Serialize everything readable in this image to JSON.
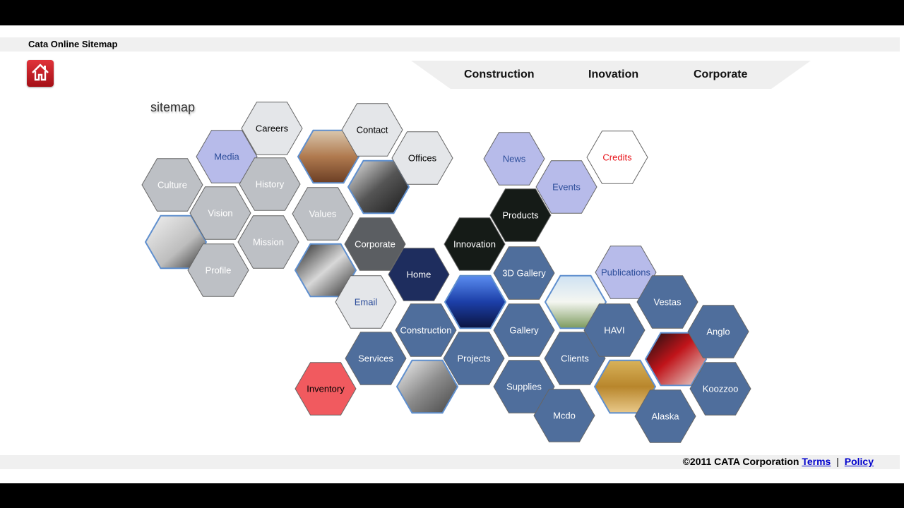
{
  "header": {
    "title": "Cata Online Sitemap",
    "home_icon": "home-icon"
  },
  "nav": {
    "items": [
      "Construction",
      "Inovation",
      "Corporate"
    ]
  },
  "sitemap": {
    "label": "sitemap",
    "colors": {
      "lavender": "#b7bbea",
      "gray": "#bdc0c5",
      "light": "#e4e6e9",
      "dark": "#5b5e62",
      "navy": "#1e2d5e",
      "black": "#151b17",
      "blue": "#4f6e9c",
      "red": "#f15a5f"
    },
    "tiles": [
      {
        "label": "Careers",
        "style": "light",
        "text": "#000"
      },
      {
        "label": "Contact",
        "style": "light",
        "text": "#000"
      },
      {
        "label": "Offices",
        "style": "light",
        "text": "#000"
      },
      {
        "label": "Media",
        "style": "lavender",
        "text": "#2c4d9a"
      },
      {
        "label": "Culture",
        "style": "gray",
        "text": "#fff"
      },
      {
        "label": "History",
        "style": "gray",
        "text": "#fff"
      },
      {
        "label": "Vision",
        "style": "gray",
        "text": "#fff"
      },
      {
        "label": "Values",
        "style": "gray",
        "text": "#fff"
      },
      {
        "label": "Mission",
        "style": "gray",
        "text": "#fff"
      },
      {
        "label": "Profile",
        "style": "gray",
        "text": "#fff"
      },
      {
        "label": "Corporate",
        "style": "dark",
        "text": "#fff"
      },
      {
        "label": "Home",
        "style": "navy",
        "text": "#fff"
      },
      {
        "label": "Email",
        "style": "light",
        "text": "#2c4d9a"
      },
      {
        "label": "Innovation",
        "style": "black",
        "text": "#fff"
      },
      {
        "label": "Products",
        "style": "black",
        "text": "#fff"
      },
      {
        "label": "News",
        "style": "lavender",
        "text": "#2c4d9a"
      },
      {
        "label": "Events",
        "style": "lavender",
        "text": "#2c4d9a"
      },
      {
        "label": "Credits",
        "style": "white",
        "text": "#e8141b"
      },
      {
        "label": "3D Gallery",
        "style": "blue",
        "text": "#fff"
      },
      {
        "label": "Construction",
        "style": "blue",
        "text": "#fff"
      },
      {
        "label": "Gallery",
        "style": "blue",
        "text": "#fff"
      },
      {
        "label": "Services",
        "style": "blue",
        "text": "#fff"
      },
      {
        "label": "Projects",
        "style": "blue",
        "text": "#fff"
      },
      {
        "label": "Supplies",
        "style": "blue",
        "text": "#fff"
      },
      {
        "label": "Clients",
        "style": "blue",
        "text": "#fff"
      },
      {
        "label": "Publications",
        "style": "lavender",
        "text": "#2c4d9a"
      },
      {
        "label": "HAVI",
        "style": "blue",
        "text": "#fff"
      },
      {
        "label": "Vestas",
        "style": "blue",
        "text": "#fff"
      },
      {
        "label": "Anglo",
        "style": "blue",
        "text": "#fff"
      },
      {
        "label": "Koozzoo",
        "style": "blue",
        "text": "#fff"
      },
      {
        "label": "Mcdo",
        "style": "blue",
        "text": "#fff"
      },
      {
        "label": "Alaska",
        "style": "blue",
        "text": "#fff"
      },
      {
        "label": "Inventory",
        "style": "red",
        "text": "#000"
      }
    ],
    "photos": [
      {
        "name": "photo-meeting-room"
      },
      {
        "name": "photo-umbrella-workers"
      },
      {
        "name": "photo-interior-workers"
      },
      {
        "name": "photo-hardhat-workers"
      },
      {
        "name": "photo-exhibit-booth"
      },
      {
        "name": "photo-building-exterior"
      },
      {
        "name": "photo-conference-room"
      },
      {
        "name": "photo-red-theater"
      },
      {
        "name": "photo-steel-pipes"
      }
    ]
  },
  "footer": {
    "copyright": "©2011 CATA Corporation",
    "terms": "Terms",
    "separator": "|",
    "policy": "Policy"
  }
}
